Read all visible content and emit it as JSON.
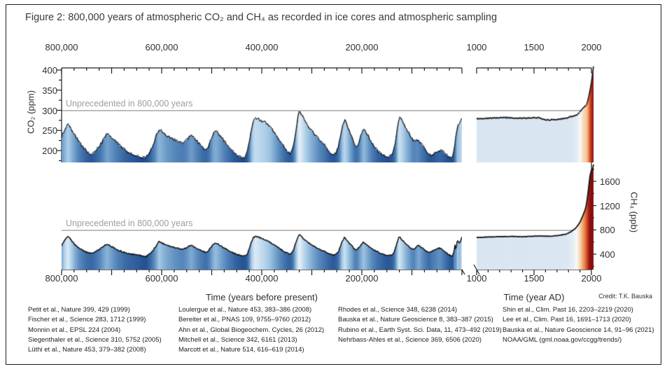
{
  "figure": {
    "title": "Figure 2:  800,000 years of atmospheric CO₂ and CH₄  as recorded in ice cores and atmospheric sampling",
    "credit": "Credit: T.K. Bauska"
  },
  "axes": {
    "bp_ticks": [
      "800,000",
      "600,000",
      "400,000",
      "200,000"
    ],
    "ad_ticks": [
      "1000",
      "1500",
      "2000"
    ],
    "co2_ticks": [
      "400",
      "350",
      "300",
      "250",
      "200"
    ],
    "ch4_ticks": [
      "1600",
      "1200",
      "800",
      "400"
    ],
    "xlabel_bp": "Time (years before present)",
    "xlabel_ad": "Time (year AD)",
    "ylabel_co2": "CO₂ (ppm)",
    "ylabel_ch4": "CH₄ (ppb)"
  },
  "annotations": {
    "co2_unprecedented": "Unprecedented in 800,000 years",
    "ch4_unprecedented": "Unprecedented in 800,000 years"
  },
  "colors": {
    "fill_dark_blue": "#1f4d8f",
    "fill_light_blue": "#ecf3fa",
    "fill_dark_red": "#760a0e",
    "threshold_gray": "#bdbdbd",
    "data_black": "#111111"
  },
  "references": {
    "col1": [
      "Petit et al., Nature 399, 429 (1999)",
      "Fischer et al., Science 283, 1712 (1999)",
      "Monnin et al., EPSL 224 (2004)",
      "Siegenthaler et al., Science 310, 5752 (2005)",
      "Lüthi et al., Nature 453, 379–382 (2008)"
    ],
    "col2": [
      "Loulergue et al., Nature 453, 383–386 (2008)",
      "Bereiter et al., PNAS 109, 9755–9760 (2012)",
      "Ahn et al., Global Biogeochem. Cycles, 26  (2012)",
      "Mitchell et al., Science 342, 6161 (2013)",
      "Marcott et al., Nature 514, 616–619 (2014)"
    ],
    "col3": [
      "Rhodes et al., Science 348, 6238 (2014)",
      "Bauska et al., Nature Geoscience 8, 383–387 (2015)",
      "Rubino et al., Earth Syst. Sci. Data, 11, 473–492 (2019)",
      "Nehrbass-Ahles et al., Science 369, 6506 (2020)"
    ],
    "col4": [
      "Shin et al., Clim. Past 16, 2203–2219 (2020)",
      "Lee et al., Clim. Past 16, 1691–1713 (2020)",
      "Bauska et al., Nature Geoscience 14, 91–96 (2021)",
      "NOAA/GML (gml.noaa.gov/ccgg/trends/)"
    ]
  },
  "chart_data": [
    {
      "type": "scatter",
      "name": "co2-ice-core",
      "title": "CO2 from ice cores, 800,000 years before present",
      "ylabel": "CO2 (ppm)",
      "x_unit": "kyr before present",
      "xlim": [
        800,
        0
      ],
      "ylim": [
        170,
        410
      ],
      "axis_ticks_y": [
        200,
        250,
        300,
        350,
        400
      ],
      "grid": false,
      "legend": "none",
      "threshold": {
        "value": 300,
        "label": "Unprecedented in 800,000 years"
      },
      "x": [
        800,
        795,
        790,
        787,
        783,
        778,
        772,
        766,
        760,
        754,
        748,
        742,
        736,
        730,
        724,
        718,
        712,
        708,
        703,
        697,
        691,
        685,
        679,
        673,
        667,
        661,
        655,
        649,
        643,
        637,
        632,
        627,
        621,
        615,
        609,
        605,
        600,
        594,
        588,
        582,
        576,
        570,
        564,
        558,
        552,
        546,
        541,
        536,
        530,
        524,
        518,
        512,
        507,
        502,
        497,
        492,
        486,
        480,
        474,
        468,
        462,
        456,
        450,
        444,
        438,
        433,
        429,
        425,
        421,
        417,
        413,
        409,
        404,
        399,
        394,
        389,
        384,
        379,
        374,
        369,
        364,
        359,
        354,
        349,
        344,
        340,
        336,
        332,
        328,
        325,
        321,
        316,
        311,
        306,
        301,
        296,
        291,
        286,
        281,
        276,
        271,
        266,
        261,
        256,
        251,
        246,
        242,
        238,
        235,
        231,
        227,
        223,
        219,
        216,
        212,
        208,
        204,
        200,
        197,
        193,
        189,
        185,
        181,
        177,
        173,
        169,
        164,
        159,
        154,
        149,
        144,
        139,
        135,
        131,
        128,
        125,
        122,
        118,
        114,
        110,
        106,
        102,
        98,
        94,
        90,
        86,
        82,
        78,
        74,
        70,
        66,
        62,
        58,
        54,
        50,
        46,
        42,
        38,
        34,
        30,
        26,
        22,
        20,
        18,
        16,
        14,
        12,
        11,
        10,
        9,
        8,
        7,
        6,
        5,
        4,
        3,
        2,
        1,
        0.2
      ],
      "values": [
        235,
        248,
        262,
        269,
        261,
        248,
        236,
        224,
        213,
        204,
        196,
        190,
        193,
        202,
        211,
        224,
        238,
        242,
        236,
        229,
        222,
        214,
        208,
        201,
        196,
        192,
        189,
        187,
        184,
        182,
        183,
        191,
        204,
        222,
        242,
        253,
        248,
        241,
        236,
        232,
        228,
        224,
        221,
        219,
        224,
        232,
        239,
        233,
        224,
        215,
        208,
        202,
        210,
        226,
        243,
        248,
        241,
        232,
        222,
        212,
        203,
        195,
        189,
        184,
        181,
        184,
        195,
        221,
        251,
        272,
        281,
        279,
        276,
        273,
        270,
        266,
        261,
        253,
        244,
        235,
        226,
        216,
        207,
        198,
        193,
        198,
        218,
        248,
        281,
        297,
        290,
        279,
        268,
        259,
        250,
        243,
        236,
        229,
        222,
        216,
        207,
        198,
        192,
        189,
        196,
        214,
        242,
        264,
        276,
        268,
        254,
        241,
        230,
        218,
        208,
        213,
        228,
        244,
        255,
        250,
        241,
        231,
        222,
        214,
        207,
        200,
        195,
        190,
        187,
        184,
        186,
        191,
        207,
        237,
        266,
        285,
        279,
        270,
        259,
        250,
        243,
        234,
        227,
        224,
        229,
        225,
        218,
        211,
        204,
        197,
        191,
        188,
        191,
        194,
        197,
        200,
        201,
        197,
        192,
        188,
        185,
        183,
        182,
        187,
        199,
        214,
        237,
        246,
        253,
        258,
        261,
        263,
        265,
        268,
        271,
        274,
        277,
        279,
        281
      ]
    },
    {
      "type": "line",
      "name": "co2-atmospheric",
      "title": "CO2 from ice cores and atmospheric sampling, year AD",
      "ylabel": "CO2 (ppm)",
      "x_unit": "year AD",
      "xlim": [
        1000,
        2020
      ],
      "grid": false,
      "legend": "none",
      "x": [
        1000,
        1050,
        1100,
        1150,
        1200,
        1250,
        1300,
        1350,
        1400,
        1450,
        1500,
        1550,
        1570,
        1600,
        1610,
        1640,
        1660,
        1700,
        1720,
        1750,
        1780,
        1800,
        1820,
        1840,
        1850,
        1860,
        1870,
        1880,
        1890,
        1900,
        1910,
        1920,
        1930,
        1940,
        1950,
        1955,
        1960,
        1965,
        1970,
        1975,
        1980,
        1985,
        1990,
        1995,
        2000,
        2005,
        2010,
        2015,
        2020
      ],
      "values": [
        279,
        280,
        280,
        281,
        281,
        282,
        281,
        280,
        280,
        281,
        282,
        281,
        279,
        277,
        276,
        276,
        277,
        277,
        278,
        279,
        280,
        282,
        284,
        285,
        286,
        287,
        288,
        290,
        293,
        296,
        299,
        303,
        307,
        310,
        311,
        313,
        317,
        320,
        326,
        331,
        339,
        346,
        354,
        361,
        369,
        379,
        390,
        401,
        414
      ]
    },
    {
      "type": "line",
      "name": "ch4-ice-core",
      "title": "CH4 from ice cores, 800,000 years before present",
      "ylabel": "CH4 (ppb)",
      "x_unit": "kyr before present",
      "xlim": [
        800,
        0
      ],
      "ylim": [
        150,
        1900
      ],
      "axis_ticks_y": [
        400,
        800,
        1200,
        1600
      ],
      "grid": false,
      "legend": "none",
      "threshold": {
        "value": 800,
        "label": "Unprecedented in 800,000 years"
      },
      "x": [
        800,
        795,
        790,
        787,
        783,
        778,
        772,
        766,
        760,
        754,
        748,
        742,
        736,
        730,
        724,
        718,
        712,
        708,
        703,
        697,
        691,
        685,
        679,
        673,
        667,
        661,
        655,
        649,
        643,
        637,
        632,
        627,
        621,
        615,
        609,
        605,
        600,
        594,
        588,
        582,
        576,
        570,
        564,
        558,
        552,
        546,
        541,
        536,
        530,
        524,
        518,
        512,
        507,
        502,
        497,
        492,
        486,
        480,
        474,
        468,
        462,
        456,
        450,
        444,
        438,
        433,
        429,
        425,
        421,
        417,
        413,
        409,
        404,
        399,
        394,
        389,
        384,
        379,
        374,
        369,
        364,
        359,
        354,
        349,
        344,
        340,
        336,
        332,
        328,
        325,
        321,
        316,
        311,
        306,
        301,
        296,
        291,
        286,
        281,
        276,
        271,
        266,
        261,
        256,
        251,
        246,
        242,
        238,
        235,
        231,
        227,
        223,
        219,
        216,
        212,
        208,
        204,
        200,
        197,
        193,
        189,
        185,
        181,
        177,
        173,
        169,
        164,
        159,
        154,
        149,
        144,
        139,
        135,
        131,
        128,
        125,
        122,
        118,
        114,
        110,
        106,
        102,
        98,
        94,
        90,
        86,
        82,
        78,
        74,
        70,
        66,
        62,
        58,
        54,
        50,
        46,
        42,
        38,
        34,
        30,
        26,
        22,
        20,
        18,
        16,
        14,
        12,
        11,
        10,
        9,
        8,
        7,
        6,
        5,
        4,
        3,
        2,
        1,
        0.2
      ],
      "values": [
        540,
        620,
        680,
        700,
        660,
        600,
        545,
        505,
        470,
        445,
        425,
        415,
        425,
        450,
        480,
        520,
        555,
        565,
        540,
        510,
        485,
        460,
        440,
        425,
        412,
        402,
        395,
        388,
        378,
        366,
        358,
        385,
        430,
        490,
        560,
        610,
        585,
        560,
        540,
        525,
        510,
        498,
        488,
        480,
        500,
        525,
        550,
        525,
        498,
        472,
        450,
        430,
        455,
        505,
        560,
        585,
        555,
        525,
        495,
        468,
        442,
        418,
        398,
        380,
        365,
        372,
        400,
        490,
        600,
        670,
        700,
        688,
        672,
        655,
        638,
        620,
        598,
        572,
        545,
        518,
        492,
        465,
        440,
        415,
        400,
        420,
        490,
        590,
        680,
        720,
        690,
        650,
        615,
        585,
        558,
        535,
        512,
        492,
        472,
        452,
        430,
        408,
        392,
        382,
        400,
        455,
        555,
        630,
        672,
        645,
        598,
        560,
        528,
        495,
        470,
        488,
        530,
        568,
        595,
        575,
        548,
        522,
        498,
        476,
        456,
        438,
        420,
        404,
        390,
        376,
        380,
        395,
        448,
        548,
        635,
        690,
        660,
        622,
        586,
        555,
        528,
        500,
        478,
        490,
        525,
        545,
        518,
        492,
        468,
        445,
        425,
        440,
        458,
        472,
        488,
        502,
        495,
        468,
        440,
        415,
        392,
        375,
        368,
        385,
        440,
        545,
        480,
        520,
        600,
        618,
        608,
        596,
        585,
        582,
        588,
        605,
        635,
        662,
        693
      ]
    },
    {
      "type": "line",
      "name": "ch4-atmospheric",
      "title": "CH4 from ice cores and atmospheric sampling, year AD",
      "ylabel": "CH4 (ppb)",
      "x_unit": "year AD",
      "xlim": [
        1000,
        2020
      ],
      "grid": false,
      "legend": "none",
      "x": [
        1000,
        1050,
        1100,
        1150,
        1200,
        1250,
        1300,
        1350,
        1400,
        1450,
        1500,
        1550,
        1600,
        1650,
        1700,
        1750,
        1775,
        1800,
        1825,
        1850,
        1875,
        1900,
        1910,
        1920,
        1930,
        1940,
        1950,
        1960,
        1970,
        1975,
        1980,
        1985,
        1990,
        1995,
        2000,
        2005,
        2010,
        2015,
        2020
      ],
      "values": [
        675,
        680,
        683,
        685,
        688,
        690,
        692,
        690,
        688,
        692,
        698,
        700,
        697,
        695,
        705,
        720,
        730,
        750,
        775,
        805,
        855,
        925,
        965,
        1010,
        1055,
        1105,
        1160,
        1260,
        1400,
        1480,
        1570,
        1650,
        1715,
        1750,
        1775,
        1785,
        1800,
        1845,
        1890
      ]
    }
  ]
}
